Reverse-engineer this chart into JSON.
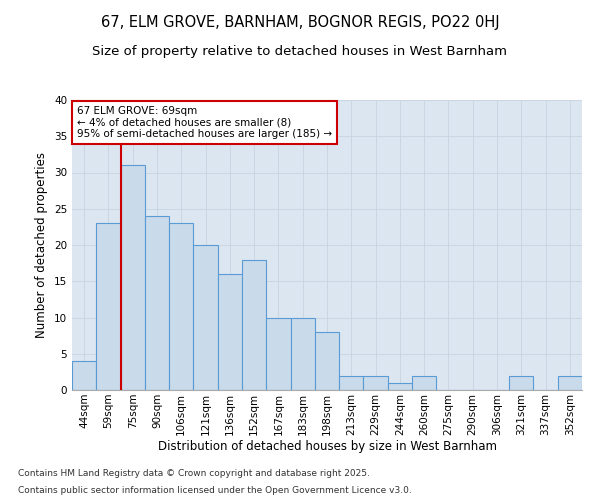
{
  "title1": "67, ELM GROVE, BARNHAM, BOGNOR REGIS, PO22 0HJ",
  "title2": "Size of property relative to detached houses in West Barnham",
  "xlabel": "Distribution of detached houses by size in West Barnham",
  "ylabel": "Number of detached properties",
  "categories": [
    "44sqm",
    "59sqm",
    "75sqm",
    "90sqm",
    "106sqm",
    "121sqm",
    "136sqm",
    "152sqm",
    "167sqm",
    "183sqm",
    "198sqm",
    "213sqm",
    "229sqm",
    "244sqm",
    "260sqm",
    "275sqm",
    "290sqm",
    "306sqm",
    "321sqm",
    "337sqm",
    "352sqm"
  ],
  "values": [
    4,
    23,
    31,
    24,
    23,
    20,
    16,
    18,
    10,
    10,
    8,
    2,
    2,
    1,
    2,
    0,
    0,
    0,
    2,
    0,
    2
  ],
  "bar_color": "#c9daea",
  "bar_edge_color": "#5b9bd5",
  "vline_x": 1.5,
  "vline_color": "#cc0000",
  "annotation_text": "67 ELM GROVE: 69sqm\n← 4% of detached houses are smaller (8)\n95% of semi-detached houses are larger (185) →",
  "annotation_box_color": "#ffffff",
  "annotation_box_edge": "#cc0000",
  "ylim": [
    0,
    40
  ],
  "yticks": [
    0,
    5,
    10,
    15,
    20,
    25,
    30,
    35,
    40
  ],
  "grid_color": "#c8d4e3",
  "bg_color": "#dce6f1",
  "footnote1": "Contains HM Land Registry data © Crown copyright and database right 2025.",
  "footnote2": "Contains public sector information licensed under the Open Government Licence v3.0.",
  "title1_fontsize": 10.5,
  "title2_fontsize": 9.5,
  "axis_fontsize": 8.5,
  "tick_fontsize": 7.5,
  "annot_fontsize": 7.5,
  "footnote_fontsize": 6.5
}
